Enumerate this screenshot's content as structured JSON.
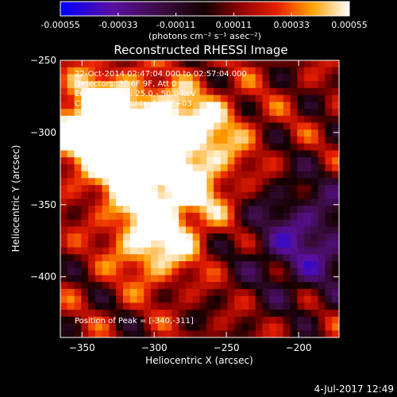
{
  "colorbar": {
    "ticks": [
      "-0.00055",
      "-0.00033",
      "-0.00011",
      "0.00011",
      "0.00033",
      "0.00055"
    ],
    "unit_label": "(photons cm⁻² s⁻¹ asec⁻²)",
    "range": [
      -0.00055,
      0.00055
    ]
  },
  "footer": {
    "timestamp": "4-Jul-2017 12:49"
  },
  "chart_data": {
    "type": "heatmap",
    "title": "Reconstructed RHESSI Image",
    "xlabel": "Heliocentric X (arcsec)",
    "ylabel": "Heliocentric Y (arcsec)",
    "xlim": [
      -365,
      -172
    ],
    "ylim": [
      -442,
      -250
    ],
    "x_ticks": [
      -350,
      -300,
      -250,
      -200
    ],
    "x_tick_labels": [
      "−350",
      "−300",
      "−250",
      "−200"
    ],
    "y_ticks": [
      -250,
      -300,
      -350,
      -400
    ],
    "y_tick_labels": [
      "−250",
      "−300",
      "−350",
      "−400"
    ],
    "annotations": [
      "22-Oct-2014 02:47:04.000 to 02:57:04.000",
      "Detectors: 3F 6F 9F, Att 0",
      "Energy Range: 25.0 - 50.0 keV",
      "Clean    Total counts: 5.77E+03"
    ],
    "peak_label": "Position of Peak = [-340,-311]",
    "peak": [
      -340,
      -311
    ],
    "bright_sources": [
      {
        "x": -345,
        "y": -300,
        "value": 0.0005
      },
      {
        "x": -330,
        "y": -285,
        "value": 0.0004
      },
      {
        "x": -310,
        "y": -330,
        "value": 0.00055
      },
      {
        "x": -300,
        "y": -375,
        "value": 0.00048
      },
      {
        "x": -285,
        "y": -295,
        "value": 0.00042
      },
      {
        "x": -270,
        "y": -340,
        "value": 0.0003
      },
      {
        "x": -255,
        "y": -300,
        "value": 0.0002
      }
    ],
    "dim_region": {
      "x": -195,
      "y": -375,
      "value": -0.0004
    }
  }
}
